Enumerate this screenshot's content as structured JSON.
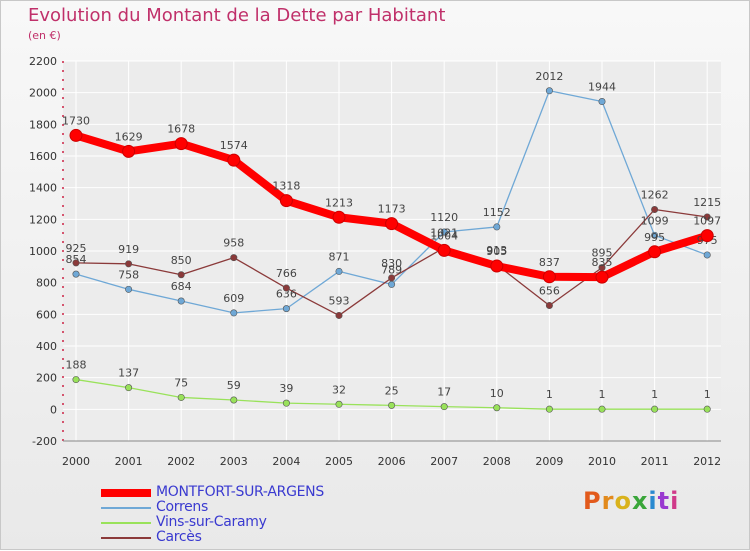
{
  "title": "Evolution du Montant de la Dette par Habitant",
  "subtitle": "(en €)",
  "logo_text": "Proxiti",
  "chart_data": {
    "type": "line",
    "title": "Evolution du Montant de la Dette par Habitant",
    "subtitle": "(en €)",
    "categories": [
      "2000",
      "2001",
      "2002",
      "2003",
      "2004",
      "2005",
      "2006",
      "2007",
      "2008",
      "2009",
      "2010",
      "2011",
      "2012"
    ],
    "ylim": [
      -200,
      2200
    ],
    "yticks": [
      -200,
      0,
      200,
      400,
      600,
      800,
      1000,
      1200,
      1400,
      1600,
      1800,
      2000,
      2200
    ],
    "grid": true,
    "legend_position": "bottom-left",
    "series": [
      {
        "name": "MONTFORT-SUR-ARGENS",
        "color": "#ff0000",
        "values": [
          1730,
          1629,
          1678,
          1574,
          1318,
          1213,
          1173,
          1004,
          905,
          837,
          835,
          995,
          1097
        ]
      },
      {
        "name": "Correns",
        "color": "#6fa8d6",
        "values": [
          854,
          758,
          684,
          609,
          636,
          871,
          789,
          1120,
          1152,
          2012,
          1944,
          1099,
          975
        ]
      },
      {
        "name": "Vins-sur-Caramy",
        "color": "#99e25a",
        "values": [
          188,
          137,
          75,
          59,
          39,
          32,
          25,
          17,
          10,
          1,
          1,
          1,
          1
        ]
      },
      {
        "name": "Carcès",
        "color": "#8b3a3a",
        "values": [
          925,
          919,
          850,
          958,
          766,
          593,
          830,
          1021,
          913,
          656,
          895,
          1262,
          1215
        ]
      }
    ]
  }
}
